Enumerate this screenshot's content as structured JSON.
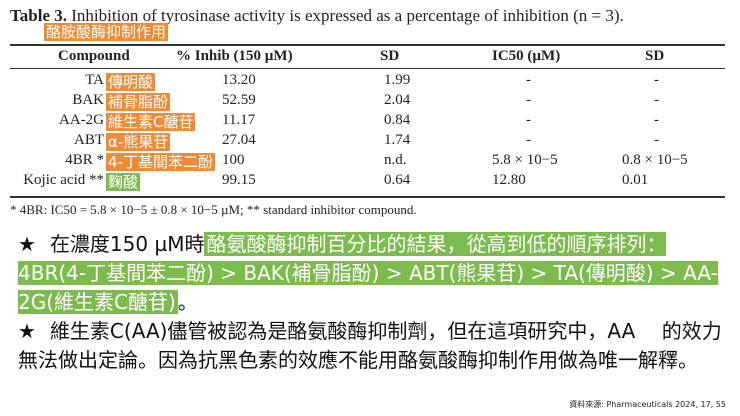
{
  "table": {
    "caption_label": "Table 3.",
    "caption_text": "Inhibition of tyrosinase activity is expressed as a percentage of inhibition (n = 3).",
    "caption_translation": "酪胺酸酶抑制作用",
    "headers": [
      "Compound",
      "% Inhib (150 µM)",
      "SD",
      "IC50 (µM)",
      "SD"
    ],
    "rows": [
      {
        "compound": "TA",
        "zh": "傳明酸",
        "zh_color": "orange",
        "inhib": "13.20",
        "sd": "1.99",
        "ic50": "-",
        "sd2": "-"
      },
      {
        "compound": "BAK",
        "zh": "補骨脂酚",
        "zh_color": "orange",
        "inhib": "52.59",
        "sd": "2.04",
        "ic50": "-",
        "sd2": "-"
      },
      {
        "compound": "AA-2G",
        "zh": "維生素C醣苷",
        "zh_color": "orange",
        "inhib": "11.17",
        "sd": "0.84",
        "ic50": "-",
        "sd2": "-"
      },
      {
        "compound": "ABT",
        "zh": "α-熊果苷",
        "zh_color": "orange",
        "inhib": "27.04",
        "sd": "1.74",
        "ic50": "-",
        "sd2": "-"
      },
      {
        "compound": "4BR *",
        "zh": "4-丁基間苯二酚",
        "zh_color": "orange",
        "inhib": "100",
        "sd": "n.d.",
        "ic50": "5.8 × 10−5",
        "sd2": "0.8 × 10−5"
      },
      {
        "compound": "Kojic acid **",
        "zh": "麴酸",
        "zh_color": "green",
        "inhib": "99.15",
        "sd": "0.64",
        "ic50": "12.80",
        "sd2": "0.01"
      }
    ],
    "footnote": "* 4BR: IC50 = 5.8 × 10−5 ± 0.8 × 10−5 µM; ** standard inhibitor compound."
  },
  "notes": {
    "bullet": "★",
    "n1_plain": "在濃度150 µM時",
    "n1_highlight": "酪氨酸酶抑制百分比的結果，從高到低的順序排列：4BR(4-丁基間苯二酚) > BAK(補骨脂酚) > ABT(熊果苷) > TA(傳明酸) > AA-2G(維生素C醣苷)",
    "n1_end": "。",
    "n2": "維生素C(AA)儘管被認為是酪氨酸酶抑制劑，但在這項研究中，AA　 的效力無法做出定論。因為抗黑色素的效應不能用酪氨酸酶抑制作用做為唯一解釋。"
  },
  "source": "資料來源: Pharmaceuticals 2024, 17, 55",
  "colors": {
    "orange_highlight": "#ef8a35",
    "green_highlight": "#7dbb4e"
  }
}
